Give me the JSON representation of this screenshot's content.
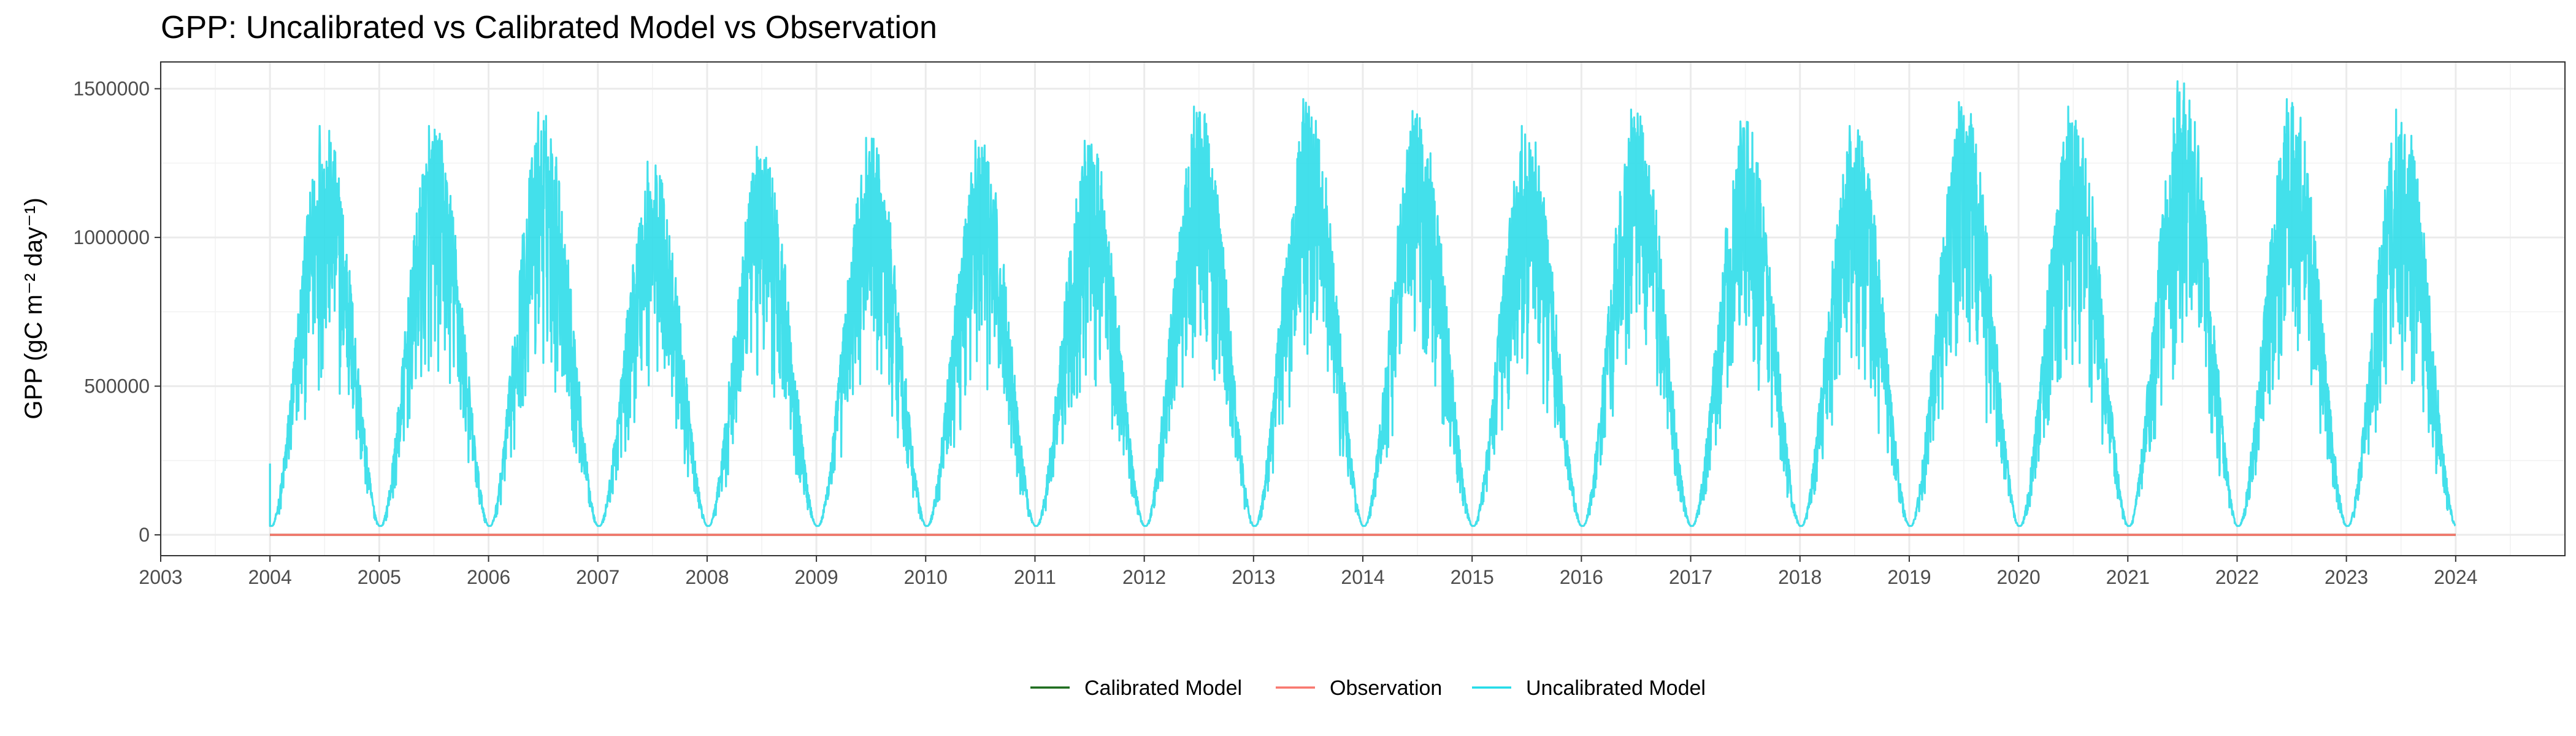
{
  "chart_data": {
    "type": "line",
    "title": "GPP: Uncalibrated vs Calibrated Model vs Observation",
    "xlabel": "",
    "ylabel": "GPP (gC m⁻² day⁻¹)",
    "xlim": [
      2003,
      2025
    ],
    "ylim": [
      -70000,
      1590000
    ],
    "x_ticks": [
      "2003",
      "2004",
      "2005",
      "2006",
      "2007",
      "2008",
      "2009",
      "2010",
      "2011",
      "2012",
      "2013",
      "2014",
      "2015",
      "2016",
      "2017",
      "2018",
      "2019",
      "2020",
      "2021",
      "2022",
      "2023",
      "2024"
    ],
    "y_ticks": [
      {
        "value": 0,
        "label": "0"
      },
      {
        "value": 500000,
        "label": "500000"
      },
      {
        "value": 1000000,
        "label": "1000000"
      },
      {
        "value": 1500000,
        "label": "1500000"
      }
    ],
    "grid": true,
    "legend_position": "bottom",
    "series": [
      {
        "name": "Calibrated Model",
        "color": "#1b6b1b",
        "x": [
          2004.0,
          2024.0
        ],
        "y": [
          0,
          0
        ],
        "visible": "flat near 0, hidden beneath Observation line"
      },
      {
        "name": "Observation",
        "color": "#f8766d",
        "x": [
          2004.0,
          2024.0
        ],
        "y": [
          0,
          0
        ]
      },
      {
        "name": "Uncalibrated Model",
        "color": "#22dbe8",
        "x": [
          2004.0
        ],
        "y": [
          240000
        ],
        "yearly_summer_peaks": [
          {
            "year": 2004,
            "peak": 1375000
          },
          {
            "year": 2005,
            "peak": 1375000
          },
          {
            "year": 2006,
            "peak": 1420000
          },
          {
            "year": 2007,
            "peak": 1255000
          },
          {
            "year": 2008,
            "peak": 1305000
          },
          {
            "year": 2009,
            "peak": 1335000
          },
          {
            "year": 2010,
            "peak": 1325000
          },
          {
            "year": 2011,
            "peak": 1325000
          },
          {
            "year": 2012,
            "peak": 1440000
          },
          {
            "year": 2013,
            "peak": 1465000
          },
          {
            "year": 2014,
            "peak": 1425000
          },
          {
            "year": 2015,
            "peak": 1375000
          },
          {
            "year": 2016,
            "peak": 1430000
          },
          {
            "year": 2017,
            "peak": 1390000
          },
          {
            "year": 2018,
            "peak": 1375000
          },
          {
            "year": 2019,
            "peak": 1455000
          },
          {
            "year": 2020,
            "peak": 1440000
          },
          {
            "year": 2021,
            "peak": 1525000
          },
          {
            "year": 2022,
            "peak": 1465000
          },
          {
            "year": 2023,
            "peak": 1430000
          }
        ],
        "winter_min": 30000,
        "resolution": "daily"
      }
    ]
  },
  "legend": {
    "items": [
      {
        "label": "Calibrated Model",
        "color": "#1b6b1b"
      },
      {
        "label": "Observation",
        "color": "#f8766d"
      },
      {
        "label": "Uncalibrated Model",
        "color": "#22dbe8"
      }
    ]
  }
}
